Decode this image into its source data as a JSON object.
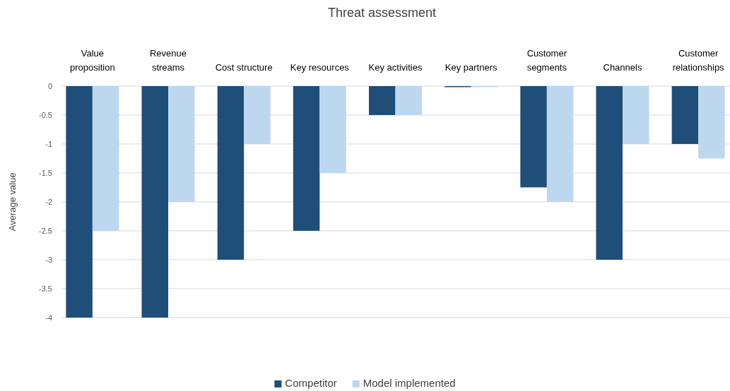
{
  "chart_data": {
    "type": "bar",
    "title": "Threat assessment",
    "ylabel": "Average value",
    "categories": [
      "Value proposition",
      "Revenue streams",
      "Cost structure",
      "Key resources",
      "Key activities",
      "Key partners",
      "Customer segments",
      "Channels",
      "Customer relationships"
    ],
    "series": [
      {
        "name": "Competitor",
        "color": "#1f4e79",
        "values": [
          -4,
          -4,
          -3,
          -2.5,
          -0.5,
          0,
          -1.75,
          -3,
          -1
        ]
      },
      {
        "name": "Model implemented",
        "color": "#bdd7ee",
        "values": [
          -2.5,
          -2,
          -1,
          -1.5,
          -0.5,
          0,
          -2,
          -1,
          -1.25
        ]
      }
    ],
    "ylim": [
      -4,
      0
    ],
    "yticks": [
      0,
      -0.5,
      -1,
      -1.5,
      -2,
      -2.5,
      -3,
      -3.5,
      -4
    ],
    "grid": "y",
    "legend": "bottom"
  }
}
